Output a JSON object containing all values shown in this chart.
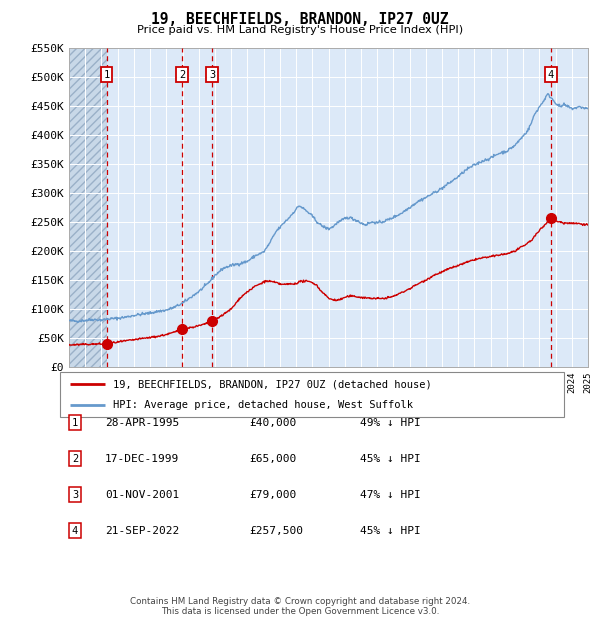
{
  "title": "19, BEECHFIELDS, BRANDON, IP27 0UZ",
  "subtitle": "Price paid vs. HM Land Registry's House Price Index (HPI)",
  "ylabel_ticks": [
    "£0",
    "£50K",
    "£100K",
    "£150K",
    "£200K",
    "£250K",
    "£300K",
    "£350K",
    "£400K",
    "£450K",
    "£500K",
    "£550K"
  ],
  "ytick_values": [
    0,
    50000,
    100000,
    150000,
    200000,
    250000,
    300000,
    350000,
    400000,
    450000,
    500000,
    550000
  ],
  "xmin": 1993,
  "xmax": 2025,
  "ymin": 0,
  "ymax": 550000,
  "sales": [
    {
      "num": 1,
      "date": "28-APR-1995",
      "price": 40000,
      "year": 1995.32,
      "pct": "49%"
    },
    {
      "num": 2,
      "date": "17-DEC-1999",
      "price": 65000,
      "year": 1999.96,
      "pct": "45%"
    },
    {
      "num": 3,
      "date": "01-NOV-2001",
      "price": 79000,
      "year": 2001.83,
      "pct": "47%"
    },
    {
      "num": 4,
      "date": "21-SEP-2022",
      "price": 257500,
      "year": 2022.72,
      "pct": "45%"
    }
  ],
  "legend_line1": "19, BEECHFIELDS, BRANDON, IP27 0UZ (detached house)",
  "legend_line2": "HPI: Average price, detached house, West Suffolk",
  "footer1": "Contains HM Land Registry data © Crown copyright and database right 2024.",
  "footer2": "This data is licensed under the Open Government Licence v3.0.",
  "plot_bg": "#dce9f8",
  "hatch_bg": "#c8d8e8",
  "grid_color": "#ffffff",
  "sale_line_color": "#cc0000",
  "hpi_line_color": "#6699cc",
  "marker_color": "#cc0000",
  "box_color": "#cc0000",
  "hpi_anchors": [
    [
      1993.0,
      80000
    ],
    [
      1993.5,
      79000
    ],
    [
      1994.0,
      80500
    ],
    [
      1994.5,
      82000
    ],
    [
      1995.0,
      81000
    ],
    [
      1995.5,
      83000
    ],
    [
      1996.0,
      84000
    ],
    [
      1996.5,
      86000
    ],
    [
      1997.0,
      89000
    ],
    [
      1997.5,
      91000
    ],
    [
      1998.0,
      93000
    ],
    [
      1998.5,
      96000
    ],
    [
      1999.0,
      98000
    ],
    [
      1999.5,
      103000
    ],
    [
      2000.0,
      110000
    ],
    [
      2000.5,
      120000
    ],
    [
      2001.0,
      130000
    ],
    [
      2001.5,
      142000
    ],
    [
      2002.0,
      158000
    ],
    [
      2002.5,
      170000
    ],
    [
      2003.0,
      175000
    ],
    [
      2003.5,
      178000
    ],
    [
      2004.0,
      182000
    ],
    [
      2004.5,
      192000
    ],
    [
      2005.0,
      198000
    ],
    [
      2005.3,
      210000
    ],
    [
      2005.5,
      220000
    ],
    [
      2005.8,
      235000
    ],
    [
      2006.0,
      240000
    ],
    [
      2006.3,
      250000
    ],
    [
      2006.5,
      255000
    ],
    [
      2006.8,
      265000
    ],
    [
      2007.0,
      272000
    ],
    [
      2007.2,
      278000
    ],
    [
      2007.5,
      272000
    ],
    [
      2007.8,
      265000
    ],
    [
      2008.0,
      260000
    ],
    [
      2008.3,
      250000
    ],
    [
      2008.5,
      245000
    ],
    [
      2008.8,
      240000
    ],
    [
      2009.0,
      238000
    ],
    [
      2009.3,
      242000
    ],
    [
      2009.5,
      248000
    ],
    [
      2009.8,
      252000
    ],
    [
      2010.0,
      256000
    ],
    [
      2010.3,
      258000
    ],
    [
      2010.5,
      255000
    ],
    [
      2010.8,
      252000
    ],
    [
      2011.0,
      248000
    ],
    [
      2011.3,
      245000
    ],
    [
      2011.5,
      248000
    ],
    [
      2011.8,
      250000
    ],
    [
      2012.0,
      248000
    ],
    [
      2012.3,
      250000
    ],
    [
      2012.5,
      252000
    ],
    [
      2012.8,
      255000
    ],
    [
      2013.0,
      258000
    ],
    [
      2013.5,
      265000
    ],
    [
      2014.0,
      275000
    ],
    [
      2014.5,
      285000
    ],
    [
      2015.0,
      292000
    ],
    [
      2015.5,
      300000
    ],
    [
      2016.0,
      308000
    ],
    [
      2016.5,
      318000
    ],
    [
      2017.0,
      328000
    ],
    [
      2017.5,
      340000
    ],
    [
      2018.0,
      348000
    ],
    [
      2018.5,
      355000
    ],
    [
      2019.0,
      360000
    ],
    [
      2019.5,
      368000
    ],
    [
      2020.0,
      372000
    ],
    [
      2020.5,
      382000
    ],
    [
      2021.0,
      398000
    ],
    [
      2021.3,
      408000
    ],
    [
      2021.5,
      420000
    ],
    [
      2021.7,
      435000
    ],
    [
      2022.0,
      448000
    ],
    [
      2022.3,
      460000
    ],
    [
      2022.5,
      470000
    ],
    [
      2022.7,
      465000
    ],
    [
      2023.0,
      455000
    ],
    [
      2023.3,
      448000
    ],
    [
      2023.5,
      452000
    ],
    [
      2023.8,
      448000
    ],
    [
      2024.0,
      445000
    ],
    [
      2024.5,
      448000
    ],
    [
      2025.0,
      445000
    ]
  ],
  "sale_anchors": [
    [
      1993.0,
      38000
    ],
    [
      1993.5,
      38500
    ],
    [
      1994.0,
      39000
    ],
    [
      1994.5,
      39500
    ],
    [
      1995.32,
      40000
    ],
    [
      1995.5,
      41000
    ],
    [
      1996.0,
      43000
    ],
    [
      1996.5,
      45000
    ],
    [
      1997.0,
      47000
    ],
    [
      1997.5,
      49000
    ],
    [
      1998.0,
      51000
    ],
    [
      1998.5,
      53000
    ],
    [
      1999.0,
      56000
    ],
    [
      1999.5,
      60000
    ],
    [
      1999.96,
      65000
    ],
    [
      2000.5,
      68000
    ],
    [
      2001.0,
      71000
    ],
    [
      2001.5,
      75000
    ],
    [
      2001.83,
      79000
    ],
    [
      2002.0,
      82000
    ],
    [
      2002.5,
      90000
    ],
    [
      2003.0,
      100000
    ],
    [
      2003.3,
      110000
    ],
    [
      2003.5,
      118000
    ],
    [
      2003.8,
      125000
    ],
    [
      2004.0,
      130000
    ],
    [
      2004.3,
      135000
    ],
    [
      2004.5,
      140000
    ],
    [
      2004.8,
      143000
    ],
    [
      2005.0,
      147000
    ],
    [
      2005.3,
      148000
    ],
    [
      2005.5,
      147000
    ],
    [
      2005.8,
      145000
    ],
    [
      2006.0,
      143000
    ],
    [
      2006.3,
      142000
    ],
    [
      2006.5,
      143000
    ],
    [
      2006.8,
      143000
    ],
    [
      2007.0,
      144000
    ],
    [
      2007.2,
      147000
    ],
    [
      2007.5,
      148000
    ],
    [
      2007.8,
      147000
    ],
    [
      2008.0,
      146000
    ],
    [
      2008.3,
      140000
    ],
    [
      2008.5,
      132000
    ],
    [
      2008.8,
      125000
    ],
    [
      2009.0,
      118000
    ],
    [
      2009.3,
      116000
    ],
    [
      2009.5,
      115000
    ],
    [
      2009.8,
      117000
    ],
    [
      2010.0,
      120000
    ],
    [
      2010.3,
      122000
    ],
    [
      2010.5,
      122000
    ],
    [
      2010.8,
      121000
    ],
    [
      2011.0,
      120000
    ],
    [
      2011.3,
      119000
    ],
    [
      2011.5,
      119000
    ],
    [
      2011.8,
      118000
    ],
    [
      2012.0,
      118000
    ],
    [
      2012.3,
      118000
    ],
    [
      2012.5,
      119000
    ],
    [
      2012.8,
      120000
    ],
    [
      2013.0,
      122000
    ],
    [
      2013.5,
      128000
    ],
    [
      2014.0,
      135000
    ],
    [
      2014.5,
      143000
    ],
    [
      2015.0,
      150000
    ],
    [
      2015.5,
      158000
    ],
    [
      2016.0,
      164000
    ],
    [
      2016.5,
      170000
    ],
    [
      2017.0,
      175000
    ],
    [
      2017.5,
      180000
    ],
    [
      2018.0,
      185000
    ],
    [
      2018.5,
      188000
    ],
    [
      2019.0,
      190000
    ],
    [
      2019.5,
      193000
    ],
    [
      2020.0,
      195000
    ],
    [
      2020.5,
      200000
    ],
    [
      2021.0,
      208000
    ],
    [
      2021.5,
      218000
    ],
    [
      2022.0,
      235000
    ],
    [
      2022.5,
      250000
    ],
    [
      2022.72,
      257500
    ],
    [
      2023.0,
      252000
    ],
    [
      2023.5,
      248000
    ],
    [
      2024.0,
      248000
    ],
    [
      2024.5,
      247000
    ],
    [
      2025.0,
      245000
    ]
  ]
}
